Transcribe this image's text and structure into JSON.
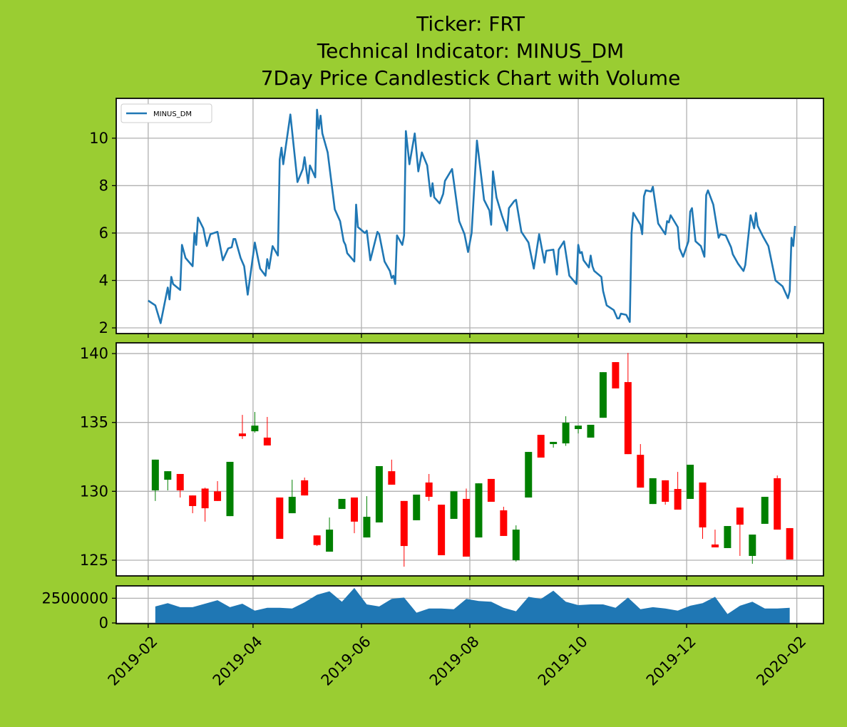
{
  "chart_data": [
    {
      "type": "line",
      "title": [
        "Ticker: FRT",
        "Technical Indicator: MINUS_DM",
        "7Day Price Candlestick Chart with Volume"
      ],
      "x": [
        "2019-02-01",
        "2019-02-05",
        "2019-02-08",
        "2019-02-12",
        "2019-02-13",
        "2019-02-14",
        "2019-02-15",
        "2019-02-19",
        "2019-02-20",
        "2019-02-22",
        "2019-02-26",
        "2019-02-27",
        "2019-02-28",
        "2019-03-01",
        "2019-03-04",
        "2019-03-06",
        "2019-03-08",
        "2019-03-12",
        "2019-03-15",
        "2019-03-18",
        "2019-03-20",
        "2019-03-21",
        "2019-03-22",
        "2019-03-25",
        "2019-03-27",
        "2019-03-29",
        "2019-04-02",
        "2019-04-04",
        "2019-04-05",
        "2019-04-08",
        "2019-04-09",
        "2019-04-10",
        "2019-04-12",
        "2019-04-15",
        "2019-04-16",
        "2019-04-17",
        "2019-04-18",
        "2019-04-22",
        "2019-04-26",
        "2019-04-29",
        "2019-04-30",
        "2019-05-02",
        "2019-05-03",
        "2019-05-06",
        "2019-05-07",
        "2019-05-08",
        "2019-05-09",
        "2019-05-10",
        "2019-05-13",
        "2019-05-17",
        "2019-05-20",
        "2019-05-22",
        "2019-05-23",
        "2019-05-24",
        "2019-05-28",
        "2019-05-29",
        "2019-05-30",
        "2019-06-03",
        "2019-06-04",
        "2019-06-06",
        "2019-06-10",
        "2019-06-11",
        "2019-06-14",
        "2019-06-17",
        "2019-06-18",
        "2019-06-19",
        "2019-06-20",
        "2019-06-21",
        "2019-06-24",
        "2019-06-25",
        "2019-06-26",
        "2019-06-28",
        "2019-07-01",
        "2019-07-03",
        "2019-07-05",
        "2019-07-08",
        "2019-07-10",
        "2019-07-11",
        "2019-07-12",
        "2019-07-15",
        "2019-07-17",
        "2019-07-18",
        "2019-07-22",
        "2019-07-26",
        "2019-07-29",
        "2019-07-31",
        "2019-08-01",
        "2019-08-02",
        "2019-08-05",
        "2019-08-09",
        "2019-08-12",
        "2019-08-13",
        "2019-08-14",
        "2019-08-16",
        "2019-08-19",
        "2019-08-22",
        "2019-08-23",
        "2019-08-26",
        "2019-08-27",
        "2019-08-30",
        "2019-09-03",
        "2019-09-06",
        "2019-09-09",
        "2019-09-12",
        "2019-09-13",
        "2019-09-17",
        "2019-09-19",
        "2019-09-20",
        "2019-09-23",
        "2019-09-26",
        "2019-09-30",
        "2019-10-01",
        "2019-10-02",
        "2019-10-03",
        "2019-10-04",
        "2019-10-07",
        "2019-10-08",
        "2019-10-09",
        "2019-10-10",
        "2019-10-14",
        "2019-10-15",
        "2019-10-17",
        "2019-10-21",
        "2019-10-23",
        "2019-10-24",
        "2019-10-25",
        "2019-10-28",
        "2019-10-30",
        "2019-10-31",
        "2019-11-01",
        "2019-11-05",
        "2019-11-06",
        "2019-11-07",
        "2019-11-08",
        "2019-11-11",
        "2019-11-12",
        "2019-11-15",
        "2019-11-19",
        "2019-11-20",
        "2019-11-21",
        "2019-11-22",
        "2019-11-26",
        "2019-11-27",
        "2019-11-29",
        "2019-12-02",
        "2019-12-03",
        "2019-12-04",
        "2019-12-06",
        "2019-12-09",
        "2019-12-11",
        "2019-12-12",
        "2019-12-13",
        "2019-12-16",
        "2019-12-19",
        "2019-12-20",
        "2019-12-23",
        "2019-12-26",
        "2019-12-27",
        "2019-12-30",
        "2020-01-02",
        "2020-01-03",
        "2020-01-06",
        "2020-01-08",
        "2020-01-09",
        "2020-01-10",
        "2020-01-13",
        "2020-01-16",
        "2020-01-20",
        "2020-01-24",
        "2020-01-27",
        "2020-01-28",
        "2020-01-29",
        "2020-01-30",
        "2020-01-31"
      ],
      "series": [
        {
          "name": "MINUS_DM",
          "color": "#1f77b4",
          "values": [
            3.15,
            2.95,
            2.2,
            3.7,
            3.2,
            4.15,
            3.85,
            3.6,
            5.5,
            4.95,
            4.6,
            6.0,
            5.5,
            6.65,
            6.2,
            5.45,
            5.95,
            6.05,
            4.85,
            5.35,
            5.4,
            5.75,
            5.75,
            4.95,
            4.6,
            3.4,
            5.6,
            4.85,
            4.5,
            4.2,
            4.9,
            4.5,
            5.45,
            5.05,
            9.1,
            9.6,
            8.9,
            11.0,
            8.15,
            8.7,
            9.2,
            8.1,
            8.85,
            8.35,
            11.2,
            10.4,
            10.95,
            10.2,
            9.4,
            7.0,
            6.5,
            5.65,
            5.5,
            5.15,
            4.8,
            7.2,
            6.25,
            6.0,
            6.1,
            4.85,
            6.05,
            5.95,
            4.8,
            4.4,
            4.1,
            4.2,
            3.85,
            5.9,
            5.5,
            5.9,
            10.3,
            8.9,
            10.2,
            8.6,
            9.4,
            8.85,
            7.55,
            8.1,
            7.5,
            7.25,
            7.65,
            8.2,
            8.7,
            6.5,
            5.95,
            5.2,
            5.6,
            6.0,
            9.9,
            7.4,
            6.95,
            6.35,
            8.6,
            7.5,
            6.75,
            6.1,
            7.05,
            7.35,
            7.4,
            6.05,
            5.6,
            4.5,
            5.95,
            4.75,
            5.25,
            5.3,
            4.25,
            5.3,
            5.65,
            4.2,
            3.85,
            5.5,
            5.15,
            5.2,
            4.85,
            4.55,
            5.05,
            4.6,
            4.4,
            4.15,
            3.55,
            2.95,
            2.75,
            2.4,
            2.4,
            2.6,
            2.55,
            2.25,
            6.0,
            6.85,
            6.35,
            5.95,
            7.55,
            7.8,
            7.75,
            7.95,
            6.4,
            5.95,
            6.5,
            6.45,
            6.75,
            6.25,
            5.35,
            5.0,
            5.65,
            6.9,
            7.05,
            5.65,
            5.45,
            5.0,
            7.6,
            7.8,
            7.2,
            5.8,
            5.95,
            5.9,
            5.4,
            5.1,
            4.7,
            4.4,
            4.65,
            6.75,
            6.2,
            6.85,
            6.3,
            5.85,
            5.45,
            4.0,
            3.75,
            3.25,
            3.55,
            5.8,
            5.45,
            6.3
          ]
        }
      ],
      "legend": "upper left",
      "grid": true,
      "xlim": [
        "2019-01-14",
        "2020-02-16"
      ],
      "xticks": [
        {
          "value": "2019-02-01",
          "label": "2019-02"
        },
        {
          "value": "2019-04-01",
          "label": "2019-04"
        },
        {
          "value": "2019-06-01",
          "label": "2019-06"
        },
        {
          "value": "2019-08-01",
          "label": "2019-08"
        },
        {
          "value": "2019-10-01",
          "label": "2019-10"
        },
        {
          "value": "2019-12-01",
          "label": "2019-12"
        },
        {
          "value": "2020-02-01",
          "label": "2020-02"
        }
      ],
      "ylim": [
        1.76,
        11.68
      ],
      "yticks": [
        2,
        4,
        6,
        8,
        10
      ]
    },
    {
      "type": "candlestick",
      "x": [
        "2019-02-05",
        "2019-02-12",
        "2019-02-19",
        "2019-02-26",
        "2019-03-05",
        "2019-03-12",
        "2019-03-19",
        "2019-03-26",
        "2019-04-02",
        "2019-04-09",
        "2019-04-16",
        "2019-04-23",
        "2019-04-30",
        "2019-05-07",
        "2019-05-14",
        "2019-05-21",
        "2019-05-28",
        "2019-06-04",
        "2019-06-11",
        "2019-06-18",
        "2019-06-25",
        "2019-07-02",
        "2019-07-09",
        "2019-07-16",
        "2019-07-23",
        "2019-07-30",
        "2019-08-06",
        "2019-08-13",
        "2019-08-20",
        "2019-08-27",
        "2019-09-03",
        "2019-09-10",
        "2019-09-17",
        "2019-09-24",
        "2019-10-01",
        "2019-10-08",
        "2019-10-15",
        "2019-10-22",
        "2019-10-29",
        "2019-11-05",
        "2019-11-12",
        "2019-11-19",
        "2019-11-26",
        "2019-12-03",
        "2019-12-10",
        "2019-12-17",
        "2019-12-24",
        "2019-12-31",
        "2020-01-07",
        "2020-01-14",
        "2020-01-21",
        "2020-01-28"
      ],
      "open": [
        130.07,
        130.84,
        131.26,
        129.7,
        130.2,
        130.0,
        128.2,
        134.2,
        134.36,
        133.9,
        129.55,
        128.41,
        130.8,
        126.8,
        125.62,
        128.72,
        129.55,
        126.65,
        127.74,
        131.46,
        129.3,
        127.9,
        130.64,
        129.03,
        128.0,
        129.45,
        126.65,
        130.9,
        128.62,
        125.0,
        129.55,
        134.1,
        133.43,
        133.48,
        134.52,
        133.9,
        135.34,
        139.38,
        137.93,
        132.65,
        129.08,
        130.8,
        130.17,
        129.45,
        130.64,
        126.14,
        125.88,
        128.82,
        125.31,
        127.64,
        130.95,
        127.33
      ],
      "high": [
        132.3,
        131.46,
        131.26,
        129.7,
        130.27,
        130.74,
        132.14,
        135.55,
        135.76,
        135.4,
        129.55,
        130.84,
        131.0,
        126.8,
        128.1,
        129.45,
        129.55,
        129.65,
        131.83,
        132.3,
        129.3,
        129.76,
        131.26,
        129.03,
        130.0,
        130.2,
        130.58,
        130.9,
        128.88,
        127.53,
        132.86,
        134.1,
        133.59,
        135.45,
        134.77,
        134.83,
        138.65,
        139.38,
        140.05,
        133.43,
        130.95,
        130.8,
        131.41,
        131.93,
        130.64,
        127.22,
        127.48,
        128.82,
        126.86,
        129.6,
        131.15,
        127.33
      ],
      "low": [
        129.3,
        130.07,
        129.55,
        128.41,
        127.8,
        129.3,
        128.2,
        133.8,
        134.26,
        133.33,
        126.55,
        128.41,
        129.7,
        126.03,
        125.62,
        128.72,
        126.96,
        126.65,
        127.74,
        130.48,
        124.53,
        127.9,
        129.3,
        125.36,
        128.0,
        125.26,
        126.65,
        129.24,
        126.76,
        124.9,
        129.55,
        132.45,
        133.17,
        133.3,
        134.2,
        133.9,
        135.34,
        137.47,
        132.7,
        130.27,
        129.08,
        129.03,
        128.67,
        129.45,
        126.55,
        125.93,
        125.88,
        125.31,
        124.74,
        127.64,
        127.22,
        125.05
      ],
      "close": [
        132.3,
        131.46,
        130.07,
        128.93,
        128.77,
        129.3,
        132.14,
        134.0,
        134.77,
        133.33,
        126.55,
        129.6,
        129.7,
        126.1,
        127.22,
        129.45,
        127.8,
        128.15,
        131.83,
        130.48,
        126.03,
        129.76,
        129.6,
        125.36,
        130.0,
        125.26,
        130.58,
        129.24,
        126.76,
        127.22,
        132.86,
        132.45,
        133.59,
        134.98,
        134.77,
        134.83,
        138.65,
        137.47,
        132.7,
        130.27,
        130.95,
        129.24,
        128.67,
        131.93,
        127.38,
        125.93,
        127.48,
        127.58,
        126.86,
        129.6,
        127.22,
        125.05
      ],
      "up_color": "green",
      "down_color": "red",
      "grid": true,
      "xlim": [
        "2019-01-14",
        "2020-02-16"
      ],
      "xticks": [
        {
          "value": "2019-02-01",
          "label": "2019-02"
        },
        {
          "value": "2019-04-01",
          "label": "2019-04"
        },
        {
          "value": "2019-06-01",
          "label": "2019-06"
        },
        {
          "value": "2019-08-01",
          "label": "2019-08"
        },
        {
          "value": "2019-10-01",
          "label": "2019-10"
        },
        {
          "value": "2019-12-01",
          "label": "2019-12"
        },
        {
          "value": "2020-02-01",
          "label": "2020-02"
        }
      ],
      "ylim": [
        123.86,
        140.78
      ],
      "yticks": [
        125,
        130,
        135,
        140
      ]
    },
    {
      "type": "area",
      "x": [
        "2019-02-05",
        "2019-02-12",
        "2019-02-19",
        "2019-02-26",
        "2019-03-05",
        "2019-03-12",
        "2019-03-19",
        "2019-03-26",
        "2019-04-02",
        "2019-04-09",
        "2019-04-16",
        "2019-04-23",
        "2019-04-30",
        "2019-05-07",
        "2019-05-14",
        "2019-05-21",
        "2019-05-28",
        "2019-06-04",
        "2019-06-11",
        "2019-06-18",
        "2019-06-25",
        "2019-07-02",
        "2019-07-09",
        "2019-07-16",
        "2019-07-23",
        "2019-07-30",
        "2019-08-06",
        "2019-08-13",
        "2019-08-20",
        "2019-08-27",
        "2019-09-03",
        "2019-09-10",
        "2019-09-17",
        "2019-09-24",
        "2019-10-01",
        "2019-10-08",
        "2019-10-15",
        "2019-10-22",
        "2019-10-29",
        "2019-11-05",
        "2019-11-12",
        "2019-11-19",
        "2019-11-26",
        "2019-12-03",
        "2019-12-10",
        "2019-12-17",
        "2019-12-24",
        "2019-12-31",
        "2020-01-07",
        "2020-01-14",
        "2020-01-21",
        "2020-01-28"
      ],
      "values": [
        1670000,
        2000000,
        1600000,
        1600000,
        1950000,
        2300000,
        1600000,
        1950000,
        1250000,
        1530000,
        1530000,
        1460000,
        2080000,
        2850000,
        3200000,
        2150000,
        3540000,
        1880000,
        1670000,
        2430000,
        2570000,
        1040000,
        1460000,
        1460000,
        1390000,
        2430000,
        2220000,
        2150000,
        1530000,
        1180000,
        2640000,
        2430000,
        3260000,
        2150000,
        1800000,
        1880000,
        1880000,
        1530000,
        2570000,
        1390000,
        1600000,
        1460000,
        1250000,
        1740000,
        2000000,
        2640000,
        900000,
        1740000,
        2150000,
        1460000,
        1460000,
        1530000
      ],
      "color": "#1f77b4",
      "grid": true,
      "xlim": [
        "2019-01-14",
        "2020-02-16"
      ],
      "xticks": [
        {
          "value": "2019-02-01",
          "label": "2019-02"
        },
        {
          "value": "2019-04-01",
          "label": "2019-04"
        },
        {
          "value": "2019-06-01",
          "label": "2019-06"
        },
        {
          "value": "2019-08-01",
          "label": "2019-08"
        },
        {
          "value": "2019-10-01",
          "label": "2019-10"
        },
        {
          "value": "2019-12-01",
          "label": "2019-12"
        },
        {
          "value": "2020-02-01",
          "label": "2020-02"
        }
      ],
      "ylim": [
        -70000,
        3750000
      ],
      "yticks": [
        0,
        2500000
      ]
    }
  ]
}
